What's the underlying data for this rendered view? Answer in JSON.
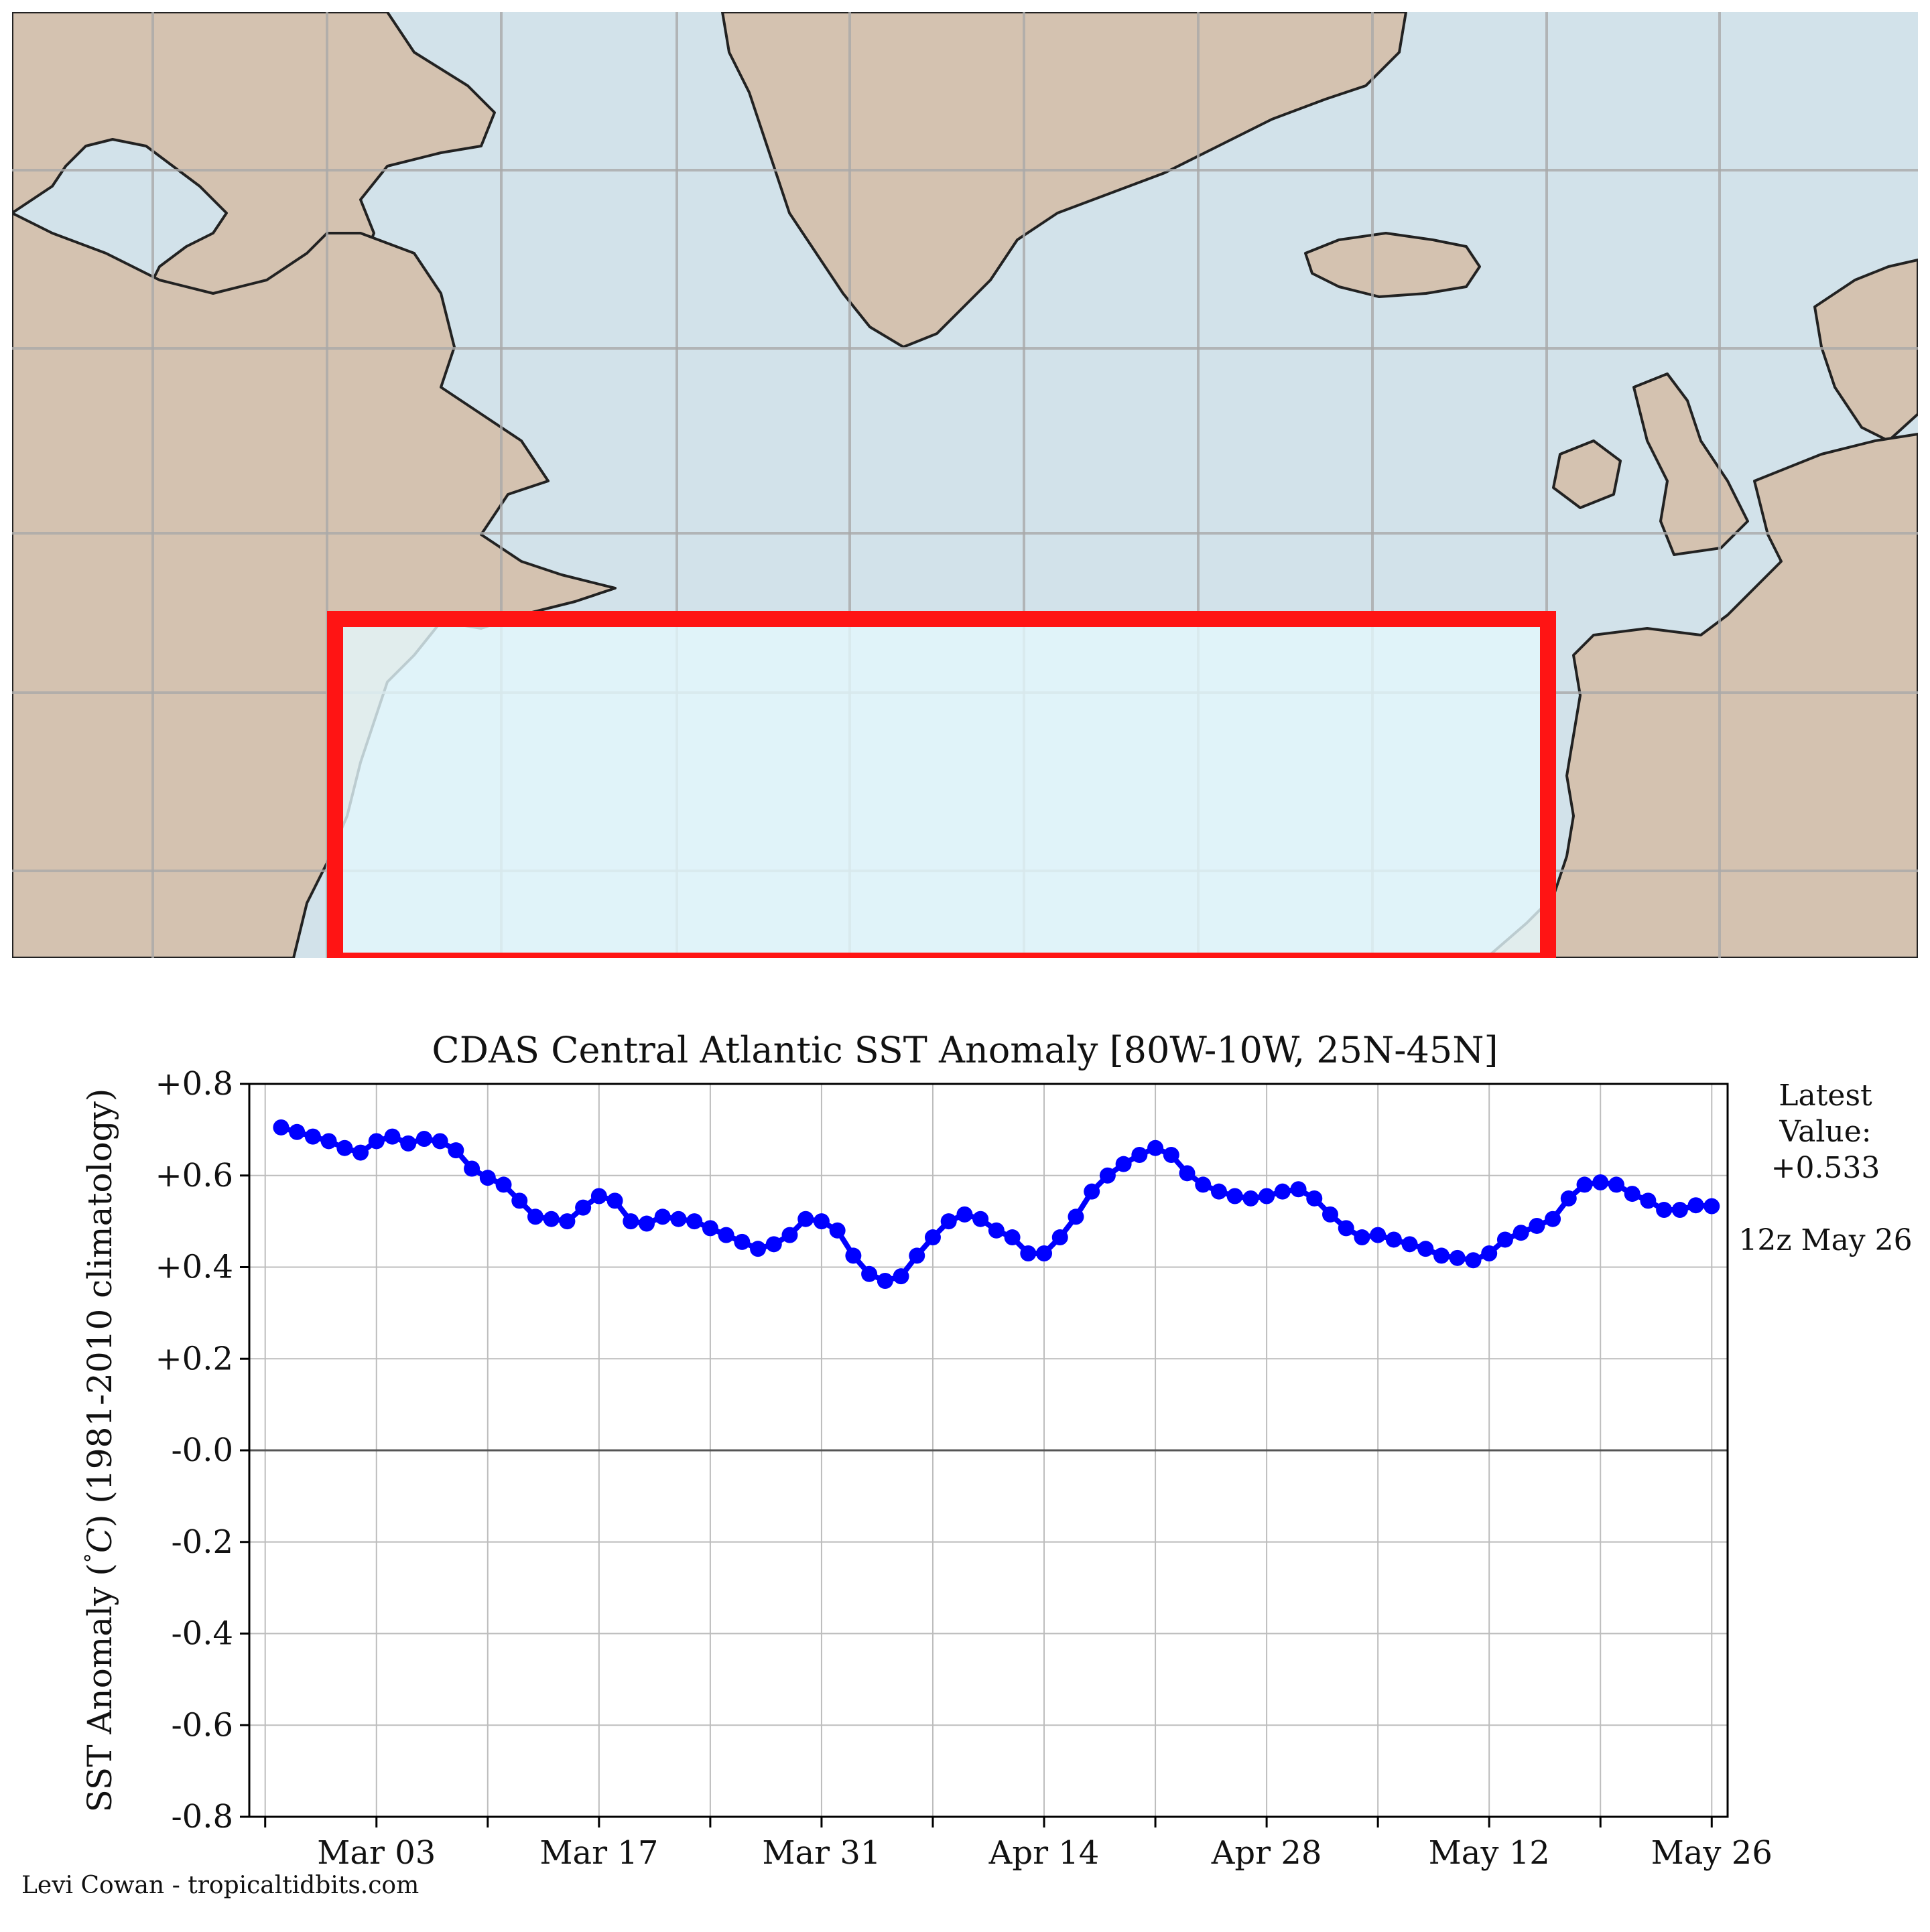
{
  "map": {
    "colors": {
      "land": "#d4c2b0",
      "ocean": "#d2e2ea",
      "region_fill": "#e4f7fd",
      "region_border": "#ff1414",
      "coastline": "#222222",
      "graticule": "#a9a9a9"
    },
    "icon": "region-highlight-box"
  },
  "chart_data": {
    "type": "line",
    "title": "CDAS Central Atlantic SST Anomaly [80W-10W, 25N-45N]",
    "ylabel": "SST Anomaly ($^\\circ C$) (1981-2010 climatology)",
    "ylabel_parts": [
      "SST Anomaly (",
      "°",
      "C",
      ") (1981-2010 climatology)"
    ],
    "xlabel": "",
    "ylim": [
      -0.8,
      0.8
    ],
    "yticks": [
      0.8,
      0.6,
      0.4,
      0.2,
      0.0,
      -0.2,
      -0.4,
      -0.6,
      -0.8
    ],
    "ytick_labels": [
      "+0.8",
      "+0.6",
      "+0.4",
      "+0.2",
      "-0.0",
      "-0.2",
      "-0.4",
      "-0.6",
      "-0.8"
    ],
    "xlim": [
      "2023-02-23",
      "2023-05-27"
    ],
    "xticks_major": [
      "2023-03-03",
      "2023-03-17",
      "2023-03-31",
      "2023-04-14",
      "2023-04-28",
      "2023-05-12",
      "2023-05-26"
    ],
    "xtick_labels": [
      "Mar 03",
      "Mar 17",
      "Mar 31",
      "Apr 14",
      "Apr 28",
      "May 12",
      "May 26"
    ],
    "xticks_minor": [
      "2023-02-24",
      "2023-03-10",
      "2023-03-24",
      "2023-04-07",
      "2023-04-21",
      "2023-05-05",
      "2023-05-19"
    ],
    "grid": true,
    "zero_line": true,
    "series": [
      {
        "color": "#0000ff",
        "marker": "circle",
        "x": [
          "2023-02-25",
          "2023-02-26",
          "2023-02-27",
          "2023-02-28",
          "2023-03-01",
          "2023-03-02",
          "2023-03-03",
          "2023-03-04",
          "2023-03-05",
          "2023-03-06",
          "2023-03-07",
          "2023-03-08",
          "2023-03-09",
          "2023-03-10",
          "2023-03-11",
          "2023-03-12",
          "2023-03-13",
          "2023-03-14",
          "2023-03-15",
          "2023-03-16",
          "2023-03-17",
          "2023-03-18",
          "2023-03-19",
          "2023-03-20",
          "2023-03-21",
          "2023-03-22",
          "2023-03-23",
          "2023-03-24",
          "2023-03-25",
          "2023-03-26",
          "2023-03-27",
          "2023-03-28",
          "2023-03-29",
          "2023-03-30",
          "2023-03-31",
          "2023-04-01",
          "2023-04-02",
          "2023-04-03",
          "2023-04-04",
          "2023-04-05",
          "2023-04-06",
          "2023-04-07",
          "2023-04-08",
          "2023-04-09",
          "2023-04-10",
          "2023-04-11",
          "2023-04-12",
          "2023-04-13",
          "2023-04-14",
          "2023-04-15",
          "2023-04-16",
          "2023-04-17",
          "2023-04-18",
          "2023-04-19",
          "2023-04-20",
          "2023-04-21",
          "2023-04-22",
          "2023-04-23",
          "2023-04-24",
          "2023-04-25",
          "2023-04-26",
          "2023-04-27",
          "2023-04-28",
          "2023-04-29",
          "2023-04-30",
          "2023-05-01",
          "2023-05-02",
          "2023-05-03",
          "2023-05-04",
          "2023-05-05",
          "2023-05-06",
          "2023-05-07",
          "2023-05-08",
          "2023-05-09",
          "2023-05-10",
          "2023-05-11",
          "2023-05-12",
          "2023-05-13",
          "2023-05-14",
          "2023-05-15",
          "2023-05-16",
          "2023-05-17",
          "2023-05-18",
          "2023-05-19",
          "2023-05-20",
          "2023-05-21",
          "2023-05-22",
          "2023-05-23",
          "2023-05-24",
          "2023-05-25",
          "2023-05-26"
        ],
        "values": [
          0.705,
          0.695,
          0.685,
          0.675,
          0.66,
          0.65,
          0.675,
          0.685,
          0.67,
          0.68,
          0.675,
          0.655,
          0.615,
          0.595,
          0.58,
          0.545,
          0.51,
          0.505,
          0.5,
          0.53,
          0.555,
          0.545,
          0.5,
          0.495,
          0.51,
          0.505,
          0.5,
          0.485,
          0.47,
          0.455,
          0.44,
          0.45,
          0.47,
          0.505,
          0.5,
          0.48,
          0.425,
          0.385,
          0.37,
          0.38,
          0.425,
          0.465,
          0.5,
          0.515,
          0.505,
          0.48,
          0.465,
          0.43,
          0.43,
          0.465,
          0.51,
          0.565,
          0.6,
          0.625,
          0.645,
          0.66,
          0.645,
          0.605,
          0.58,
          0.565,
          0.555,
          0.55,
          0.555,
          0.565,
          0.57,
          0.55,
          0.515,
          0.485,
          0.465,
          0.47,
          0.46,
          0.45,
          0.44,
          0.425,
          0.42,
          0.415,
          0.43,
          0.46,
          0.475,
          0.49,
          0.505,
          0.55,
          0.58,
          0.585,
          0.58,
          0.56,
          0.545,
          0.525,
          0.525,
          0.535,
          0.533
        ]
      }
    ],
    "latest": {
      "label_line1": "Latest",
      "label_line2": "Value:",
      "value": "+0.533",
      "time": "12z May 26"
    },
    "credit": "Levi Cowan - tropicaltidbits.com"
  }
}
